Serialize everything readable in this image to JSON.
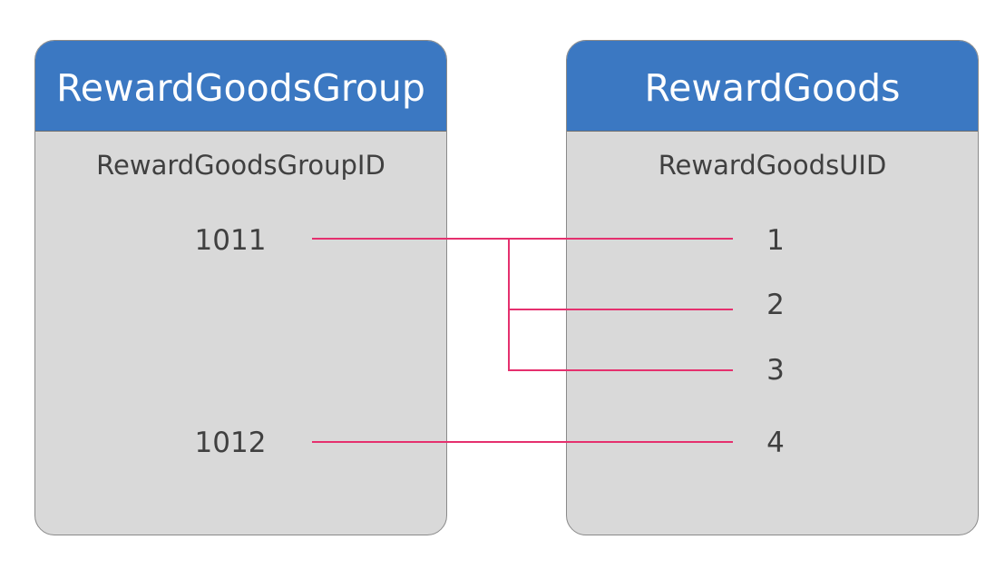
{
  "left_table": {
    "title": "RewardGoodsGroup",
    "column": "RewardGoodsGroupID",
    "values": [
      "1011",
      "1012"
    ]
  },
  "right_table": {
    "title": "RewardGoods",
    "column": "RewardGoodsUID",
    "values": [
      "1",
      "2",
      "3",
      "4"
    ]
  },
  "links": [
    {
      "from": "1011",
      "to": "1"
    },
    {
      "from": "1011",
      "to": "2"
    },
    {
      "from": "1011",
      "to": "3"
    },
    {
      "from": "1012",
      "to": "4"
    }
  ],
  "colors": {
    "header": "#3b78c2",
    "body": "#d9d9d9",
    "border": "#8a8a8a",
    "link": "#e5306e",
    "text": "#404040"
  }
}
